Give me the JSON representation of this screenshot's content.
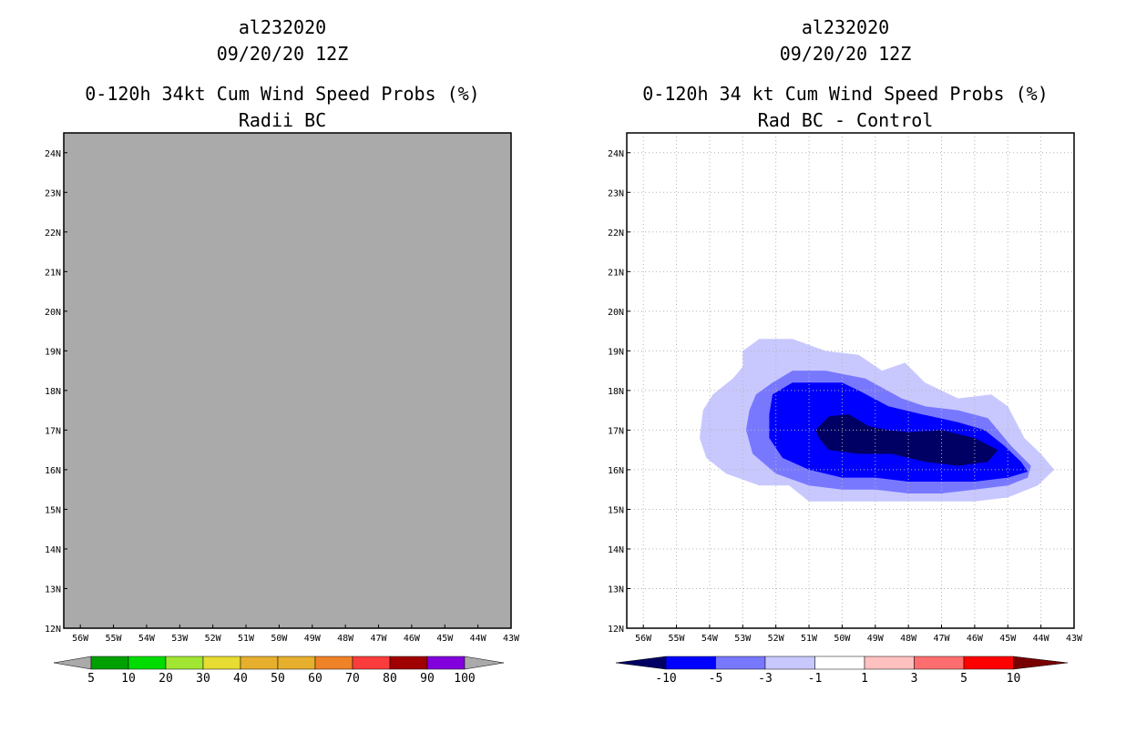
{
  "chart_data": [
    {
      "type": "heatmap",
      "panel": "left",
      "title_lines": [
        "al232020",
        "09/20/20 12Z",
        "0-120h 34kt Cum Wind Speed Probs (%)",
        "Radii BC"
      ],
      "xlabel": "",
      "ylabel": "",
      "xlim": [
        -56.5,
        -43
      ],
      "ylim": [
        12,
        24.5
      ],
      "x_ticks": [
        -56,
        -55,
        -54,
        -53,
        -52,
        -51,
        -50,
        -49,
        -48,
        -47,
        -46,
        -45,
        -44,
        -43
      ],
      "x_tick_labels": [
        "56W",
        "55W",
        "54W",
        "53W",
        "52W",
        "51W",
        "50W",
        "49W",
        "48W",
        "47W",
        "46W",
        "45W",
        "44W",
        "43W"
      ],
      "y_ticks": [
        12,
        13,
        14,
        15,
        16,
        17,
        18,
        19,
        20,
        21,
        22,
        23,
        24
      ],
      "y_tick_labels": [
        "12N",
        "13N",
        "14N",
        "15N",
        "16N",
        "17N",
        "18N",
        "19N",
        "20N",
        "21N",
        "22N",
        "23N",
        "24N"
      ],
      "grid": false,
      "background": "#aaaaaa",
      "note": "field entirely missing (gray)",
      "colorbar": {
        "labels": [
          "5",
          "10",
          "20",
          "30",
          "40",
          "50",
          "60",
          "70",
          "80",
          "90",
          "100"
        ],
        "colors": [
          "#aaaaaa",
          "#00a000",
          "#00dc00",
          "#a0e632",
          "#e6dc32",
          "#e6af2d",
          "#e6af2d",
          "#f08228",
          "#fa3c3c",
          "#a00000",
          "#8200dc",
          "#aaaaaa"
        ],
        "levels": [
          5,
          10,
          20,
          30,
          40,
          50,
          60,
          70,
          80,
          90,
          100
        ]
      }
    },
    {
      "type": "heatmap",
      "panel": "right",
      "title_lines": [
        "al232020",
        "09/20/20 12Z",
        "0-120h 34 kt Cum Wind Speed Probs (%)",
        "Rad BC - Control"
      ],
      "xlabel": "",
      "ylabel": "",
      "xlim": [
        -56.5,
        -43
      ],
      "ylim": [
        12,
        24.5
      ],
      "x_ticks": [
        -56,
        -55,
        -54,
        -53,
        -52,
        -51,
        -50,
        -49,
        -48,
        -47,
        -46,
        -45,
        -44,
        -43
      ],
      "x_tick_labels": [
        "56W",
        "55W",
        "54W",
        "53W",
        "52W",
        "51W",
        "50W",
        "49W",
        "48W",
        "47W",
        "46W",
        "45W",
        "44W",
        "43W"
      ],
      "y_ticks": [
        12,
        13,
        14,
        15,
        16,
        17,
        18,
        19,
        20,
        21,
        22,
        23,
        24
      ],
      "y_tick_labels": [
        "12N",
        "13N",
        "14N",
        "15N",
        "16N",
        "17N",
        "18N",
        "19N",
        "20N",
        "21N",
        "22N",
        "23N",
        "24N"
      ],
      "grid": true,
      "background": "#ffffff",
      "contours": [
        {
          "range": "-3 to -1",
          "color": "#c8c8ff",
          "lonlat": [
            [
              -54.2,
              17.5
            ],
            [
              -53.9,
              17.9
            ],
            [
              -53.3,
              18.3
            ],
            [
              -53.0,
              18.6
            ],
            [
              -53.0,
              19.0
            ],
            [
              -52.5,
              19.3
            ],
            [
              -51.5,
              19.3
            ],
            [
              -50.5,
              19.0
            ],
            [
              -49.5,
              18.9
            ],
            [
              -48.8,
              18.5
            ],
            [
              -48.1,
              18.7
            ],
            [
              -47.5,
              18.2
            ],
            [
              -46.5,
              17.8
            ],
            [
              -45.5,
              17.9
            ],
            [
              -45.0,
              17.6
            ],
            [
              -44.5,
              16.8
            ],
            [
              -44.0,
              16.4
            ],
            [
              -43.6,
              16.0
            ],
            [
              -44.1,
              15.6
            ],
            [
              -45.0,
              15.3
            ],
            [
              -46.0,
              15.2
            ],
            [
              -47.0,
              15.2
            ],
            [
              -48.0,
              15.2
            ],
            [
              -49.0,
              15.2
            ],
            [
              -50.0,
              15.2
            ],
            [
              -51.0,
              15.2
            ],
            [
              -51.6,
              15.6
            ],
            [
              -52.5,
              15.6
            ],
            [
              -53.5,
              15.9
            ],
            [
              -54.1,
              16.3
            ],
            [
              -54.3,
              16.8
            ]
          ]
        },
        {
          "range": "-5 to -3",
          "color": "#7878ff",
          "lonlat": [
            [
              -52.6,
              17.9
            ],
            [
              -52.1,
              18.2
            ],
            [
              -51.5,
              18.5
            ],
            [
              -50.5,
              18.5
            ],
            [
              -49.3,
              18.3
            ],
            [
              -48.2,
              17.8
            ],
            [
              -47.5,
              17.6
            ],
            [
              -46.5,
              17.5
            ],
            [
              -45.6,
              17.3
            ],
            [
              -44.9,
              16.6
            ],
            [
              -44.3,
              16.1
            ],
            [
              -44.4,
              15.8
            ],
            [
              -45.0,
              15.6
            ],
            [
              -46.0,
              15.5
            ],
            [
              -47.0,
              15.4
            ],
            [
              -48.0,
              15.4
            ],
            [
              -49.0,
              15.5
            ],
            [
              -50.0,
              15.5
            ],
            [
              -51.0,
              15.6
            ],
            [
              -52.0,
              15.9
            ],
            [
              -52.7,
              16.4
            ],
            [
              -52.9,
              17.0
            ],
            [
              -52.8,
              17.5
            ]
          ]
        },
        {
          "range": "-10 to -5",
          "color": "#0000ff",
          "lonlat": [
            [
              -52.1,
              17.9
            ],
            [
              -51.5,
              18.2
            ],
            [
              -50.0,
              18.2
            ],
            [
              -49.5,
              18.0
            ],
            [
              -48.6,
              17.6
            ],
            [
              -47.6,
              17.4
            ],
            [
              -46.5,
              17.2
            ],
            [
              -45.7,
              17.0
            ],
            [
              -45.1,
              16.6
            ],
            [
              -44.6,
              16.2
            ],
            [
              -44.4,
              15.95
            ],
            [
              -45.0,
              15.8
            ],
            [
              -46.0,
              15.7
            ],
            [
              -47.0,
              15.7
            ],
            [
              -48.0,
              15.7
            ],
            [
              -49.0,
              15.8
            ],
            [
              -50.0,
              15.8
            ],
            [
              -51.0,
              16.0
            ],
            [
              -51.8,
              16.3
            ],
            [
              -52.2,
              16.8
            ],
            [
              -52.2,
              17.4
            ]
          ]
        },
        {
          "range": "< -10",
          "color": "#000064",
          "lonlat": [
            [
              -50.8,
              17.0
            ],
            [
              -50.4,
              17.35
            ],
            [
              -49.8,
              17.4
            ],
            [
              -49.2,
              17.1
            ],
            [
              -48.6,
              17.0
            ],
            [
              -48.0,
              16.95
            ],
            [
              -47.0,
              17.0
            ],
            [
              -46.0,
              16.8
            ],
            [
              -45.3,
              16.5
            ],
            [
              -45.6,
              16.2
            ],
            [
              -46.5,
              16.1
            ],
            [
              -47.5,
              16.2
            ],
            [
              -48.5,
              16.4
            ],
            [
              -49.5,
              16.4
            ],
            [
              -50.4,
              16.5
            ],
            [
              -50.7,
              16.8
            ]
          ]
        }
      ],
      "colorbar": {
        "labels": [
          "-10",
          "-5",
          "-3",
          "-1",
          "1",
          "3",
          "5",
          "10"
        ],
        "colors": [
          "#000064",
          "#0000ff",
          "#7878ff",
          "#c8c8ff",
          "#ffffff",
          "#ffc0c0",
          "#ff6e6e",
          "#ff0000",
          "#780000"
        ],
        "levels": [
          -10,
          -5,
          -3,
          -1,
          1,
          3,
          5,
          10
        ]
      }
    }
  ]
}
